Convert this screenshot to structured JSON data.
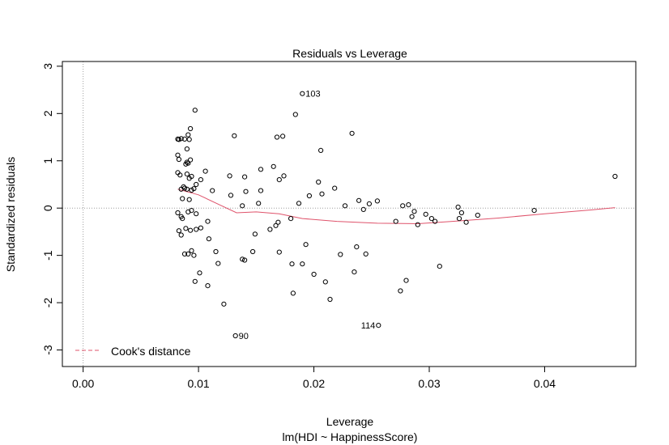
{
  "chart_data": {
    "type": "scatter",
    "title": "Residuals vs Leverage",
    "xlabel": "Leverage",
    "sublabel": "lm(HDI ~ HappinessScore)",
    "ylabel": "Standardized residuals",
    "xlim": [
      -0.0018,
      0.0479
    ],
    "ylim": [
      -3.35,
      3.1
    ],
    "xticks": [
      {
        "value": 0.0,
        "label": "0.00"
      },
      {
        "value": 0.01,
        "label": "0.01"
      },
      {
        "value": 0.02,
        "label": "0.02"
      },
      {
        "value": 0.03,
        "label": "0.03"
      },
      {
        "value": 0.04,
        "label": "0.04"
      }
    ],
    "yticks": [
      {
        "value": -3,
        "label": "-3"
      },
      {
        "value": -2,
        "label": "-2"
      },
      {
        "value": -1,
        "label": "-1"
      },
      {
        "value": 0,
        "label": "0"
      },
      {
        "value": 1,
        "label": "1"
      },
      {
        "value": 2,
        "label": "2"
      },
      {
        "value": 3,
        "label": "3"
      }
    ],
    "legend": {
      "label": "Cook's distance",
      "position": "bottom-left",
      "color": "#DF536B"
    },
    "colors": {
      "points": "#000000",
      "smooth": "#DF536B",
      "reference": "#9E9E9E"
    },
    "points": [
      [
        0.0082,
        1.46
      ],
      [
        0.0083,
        1.45
      ],
      [
        0.0085,
        1.47
      ],
      [
        0.0088,
        1.46
      ],
      [
        0.0092,
        1.45
      ],
      [
        0.0091,
        1.55
      ],
      [
        0.0093,
        1.68
      ],
      [
        0.0097,
        2.07
      ],
      [
        0.0082,
        1.12
      ],
      [
        0.0083,
        1.03
      ],
      [
        0.009,
        1.25
      ],
      [
        0.009,
        0.97
      ],
      [
        0.0091,
        0.95
      ],
      [
        0.0093,
        1.02
      ],
      [
        0.0089,
        0.93
      ],
      [
        0.0082,
        0.75
      ],
      [
        0.0084,
        0.7
      ],
      [
        0.009,
        0.72
      ],
      [
        0.0092,
        0.63
      ],
      [
        0.0094,
        0.67
      ],
      [
        0.0098,
        0.5
      ],
      [
        0.0102,
        0.6
      ],
      [
        0.0106,
        0.78
      ],
      [
        0.0085,
        0.4
      ],
      [
        0.0087,
        0.45
      ],
      [
        0.0088,
        0.42
      ],
      [
        0.009,
        0.4
      ],
      [
        0.0086,
        0.2
      ],
      [
        0.0092,
        0.18
      ],
      [
        0.0094,
        0.38
      ],
      [
        0.0096,
        0.41
      ],
      [
        0.0082,
        -0.1
      ],
      [
        0.0085,
        -0.18
      ],
      [
        0.0086,
        -0.22
      ],
      [
        0.0091,
        -0.08
      ],
      [
        0.0094,
        -0.05
      ],
      [
        0.0098,
        -0.12
      ],
      [
        0.0083,
        -0.48
      ],
      [
        0.0085,
        -0.57
      ],
      [
        0.0089,
        -0.43
      ],
      [
        0.0093,
        -0.47
      ],
      [
        0.0098,
        -0.45
      ],
      [
        0.0102,
        -0.42
      ],
      [
        0.0088,
        -0.97
      ],
      [
        0.0091,
        -0.97
      ],
      [
        0.0094,
        -0.9
      ],
      [
        0.0096,
        -1.0
      ],
      [
        0.0101,
        -1.37
      ],
      [
        0.0097,
        -1.55
      ],
      [
        0.0108,
        -0.28
      ],
      [
        0.0109,
        -0.65
      ],
      [
        0.0112,
        0.37
      ],
      [
        0.0115,
        -0.92
      ],
      [
        0.0117,
        -1.17
      ],
      [
        0.0108,
        -1.64
      ],
      [
        0.0122,
        -2.03
      ],
      [
        0.0128,
        0.27
      ],
      [
        0.0127,
        0.68
      ],
      [
        0.0131,
        1.53
      ],
      [
        0.0132,
        -2.7
      ],
      [
        0.0138,
        0.05
      ],
      [
        0.014,
        0.66
      ],
      [
        0.0141,
        0.35
      ],
      [
        0.0138,
        -1.08
      ],
      [
        0.014,
        -1.1
      ],
      [
        0.0147,
        -0.92
      ],
      [
        0.0149,
        -0.55
      ],
      [
        0.0152,
        0.1
      ],
      [
        0.0154,
        0.37
      ],
      [
        0.0154,
        0.82
      ],
      [
        0.0165,
        0.88
      ],
      [
        0.017,
        0.6
      ],
      [
        0.0167,
        -0.37
      ],
      [
        0.0169,
        -0.3
      ],
      [
        0.017,
        -0.93
      ],
      [
        0.0162,
        -0.45
      ],
      [
        0.0168,
        1.5
      ],
      [
        0.0173,
        1.52
      ],
      [
        0.0174,
        0.68
      ],
      [
        0.018,
        -0.22
      ],
      [
        0.0181,
        -1.18
      ],
      [
        0.0182,
        -1.8
      ],
      [
        0.0184,
        1.98
      ],
      [
        0.0187,
        0.1
      ],
      [
        0.019,
        2.42
      ],
      [
        0.019,
        -1.18
      ],
      [
        0.0193,
        -0.77
      ],
      [
        0.0196,
        0.26
      ],
      [
        0.02,
        -1.4
      ],
      [
        0.0204,
        0.55
      ],
      [
        0.0207,
        0.3
      ],
      [
        0.0206,
        1.22
      ],
      [
        0.021,
        -1.56
      ],
      [
        0.0214,
        -1.93
      ],
      [
        0.0218,
        0.42
      ],
      [
        0.0223,
        -0.98
      ],
      [
        0.0227,
        0.05
      ],
      [
        0.0233,
        1.58
      ],
      [
        0.0235,
        -1.35
      ],
      [
        0.0237,
        -0.82
      ],
      [
        0.0239,
        0.16
      ],
      [
        0.0243,
        -0.03
      ],
      [
        0.0245,
        -0.97
      ],
      [
        0.0248,
        0.09
      ],
      [
        0.0255,
        0.15
      ],
      [
        0.0256,
        -2.48
      ],
      [
        0.0271,
        -0.28
      ],
      [
        0.0275,
        -1.75
      ],
      [
        0.0277,
        0.05
      ],
      [
        0.028,
        -1.53
      ],
      [
        0.0282,
        0.07
      ],
      [
        0.0285,
        -0.18
      ],
      [
        0.0287,
        -0.07
      ],
      [
        0.029,
        -0.35
      ],
      [
        0.0297,
        -0.13
      ],
      [
        0.0302,
        -0.22
      ],
      [
        0.0305,
        -0.28
      ],
      [
        0.0309,
        -1.23
      ],
      [
        0.0325,
        0.02
      ],
      [
        0.0326,
        -0.22
      ],
      [
        0.0328,
        -0.1
      ],
      [
        0.0332,
        -0.3
      ],
      [
        0.0342,
        -0.15
      ],
      [
        0.0391,
        -0.05
      ],
      [
        0.0461,
        0.67
      ]
    ],
    "smooth": [
      [
        0.0082,
        0.4
      ],
      [
        0.01,
        0.28
      ],
      [
        0.012,
        0.05
      ],
      [
        0.0133,
        -0.1
      ],
      [
        0.015,
        -0.08
      ],
      [
        0.017,
        -0.12
      ],
      [
        0.019,
        -0.22
      ],
      [
        0.022,
        -0.28
      ],
      [
        0.0255,
        -0.32
      ],
      [
        0.029,
        -0.33
      ],
      [
        0.032,
        -0.28
      ],
      [
        0.036,
        -0.21
      ],
      [
        0.04,
        -0.12
      ],
      [
        0.044,
        -0.04
      ],
      [
        0.0461,
        0.01
      ]
    ],
    "annotations": [
      {
        "text": "103",
        "x": 0.019,
        "y": 2.42,
        "side": "right"
      },
      {
        "text": "90",
        "x": 0.0132,
        "y": -2.7,
        "side": "right"
      },
      {
        "text": "114",
        "x": 0.0256,
        "y": -2.48,
        "side": "left"
      }
    ]
  }
}
